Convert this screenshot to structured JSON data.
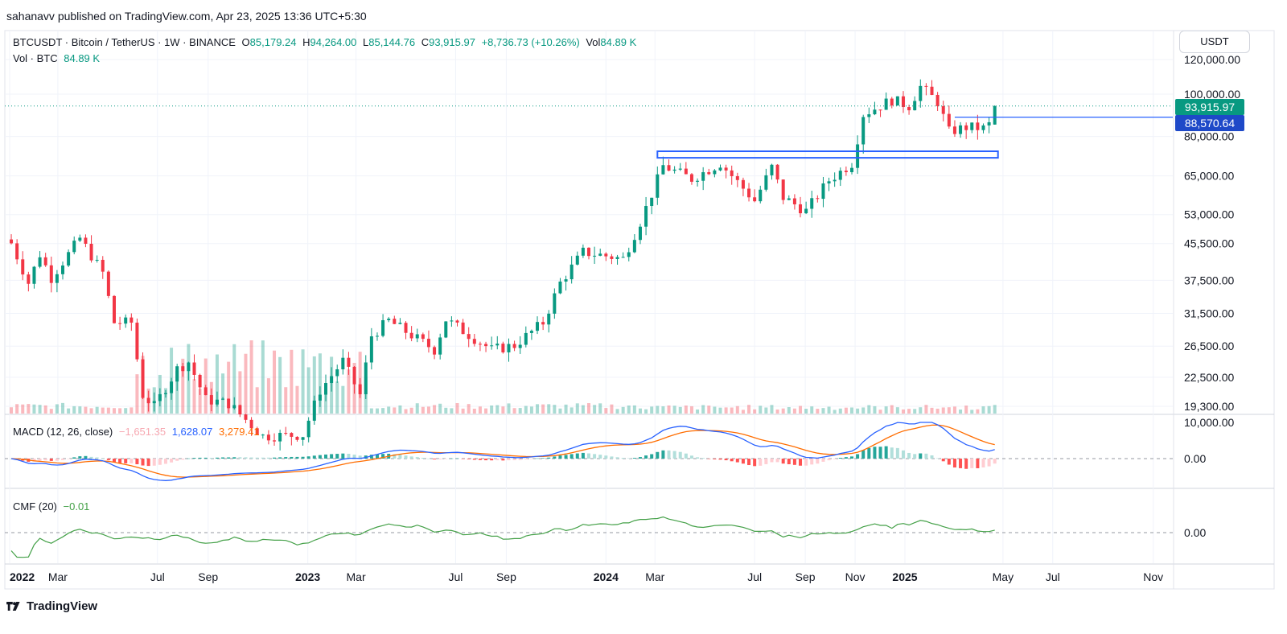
{
  "header": {
    "published": "sahanavv published on TradingView.com, Apr 23, 2025 13:36 UTC+5:30"
  },
  "legend": {
    "symbol": "BTCUSDT · Bitcoin / TetherUS · 1W · BINANCE",
    "o_label": "O",
    "o_value": "85,179.24",
    "h_label": "H",
    "h_value": "94,264.00",
    "l_label": "L",
    "l_value": "85,144.76",
    "c_label": "C",
    "c_value": "93,915.97",
    "change": "+8,736.73 (+10.26%)",
    "vol_label": "Vol",
    "vol_value": "84.89 K",
    "vol_line_label": "Vol · BTC",
    "vol_line_value": "84.89 K"
  },
  "currency_button": "USDT",
  "price_badges": {
    "last": "93,915.97",
    "level": "88,570.64"
  },
  "indicators": {
    "macd_label": "MACD (12, 26, close)",
    "macd_hist": "−1,651.35",
    "macd_line": "1,628.07",
    "macd_signal": "3,279.41",
    "cmf_label": "CMF (20)",
    "cmf_value": "−0.01"
  },
  "footer": {
    "brand": "TradingView"
  },
  "colors": {
    "up": "#089981",
    "down": "#f23645",
    "macd": "#2962ff",
    "signal": "#ff6d00",
    "cmf": "#43a047",
    "level": "#2962ff"
  },
  "chart_data": [
    {
      "type": "candlestick",
      "title": "BTCUSDT · Bitcoin / TetherUS · 1W · BINANCE",
      "y_scale": "log",
      "y_ticks": [
        "120,000.00",
        "100,000.00",
        "80,000.00",
        "65,000.00",
        "53,000.00",
        "45,500.00",
        "37,500.00",
        "31,500.00",
        "26,500.00",
        "22,500.00",
        "19,300.00"
      ],
      "y_tick_values": [
        120000,
        100000,
        80000,
        65000,
        53000,
        45500,
        37500,
        31500,
        26500,
        22500,
        19300
      ],
      "x_ticks": [
        "2022",
        "Mar",
        "Jul",
        "Sep",
        "2023",
        "Mar",
        "Jul",
        "Sep",
        "2024",
        "Mar",
        "Jul",
        "Sep",
        "Nov",
        "2025",
        "May",
        "Jul",
        "Nov"
      ],
      "x_tick_dates": [
        "2022-01-01",
        "2022-03-01",
        "2022-07-01",
        "2022-09-01",
        "2023-01-01",
        "2023-03-01",
        "2023-07-01",
        "2023-09-01",
        "2024-01-01",
        "2024-03-01",
        "2024-07-01",
        "2024-09-01",
        "2024-11-01",
        "2025-01-01",
        "2025-05-01",
        "2025-07-01",
        "2025-11-01"
      ],
      "anchors": [
        {
          "date": "2022-01-01",
          "close": 46500
        },
        {
          "date": "2022-01-24",
          "close": 37000
        },
        {
          "date": "2022-02-07",
          "close": 43000
        },
        {
          "date": "2022-02-21",
          "close": 38000
        },
        {
          "date": "2022-03-28",
          "close": 46800
        },
        {
          "date": "2022-04-25",
          "close": 39000
        },
        {
          "date": "2022-05-09",
          "close": 30000
        },
        {
          "date": "2022-05-30",
          "close": 30000
        },
        {
          "date": "2022-06-13",
          "close": 20500
        },
        {
          "date": "2022-06-27",
          "close": 19300
        },
        {
          "date": "2022-07-25",
          "close": 23500
        },
        {
          "date": "2022-08-08",
          "close": 24400
        },
        {
          "date": "2022-08-29",
          "close": 20000
        },
        {
          "date": "2022-09-26",
          "close": 19600
        },
        {
          "date": "2022-11-07",
          "close": 16500
        },
        {
          "date": "2022-12-26",
          "close": 16600
        },
        {
          "date": "2023-01-16",
          "close": 21000
        },
        {
          "date": "2023-02-13",
          "close": 24500
        },
        {
          "date": "2023-03-06",
          "close": 20500
        },
        {
          "date": "2023-03-20",
          "close": 28000
        },
        {
          "date": "2023-04-10",
          "close": 30300
        },
        {
          "date": "2023-06-05",
          "close": 26000
        },
        {
          "date": "2023-06-19",
          "close": 30500
        },
        {
          "date": "2023-08-14",
          "close": 26000
        },
        {
          "date": "2023-09-11",
          "close": 26600
        },
        {
          "date": "2023-10-16",
          "close": 30000
        },
        {
          "date": "2023-11-06",
          "close": 37000
        },
        {
          "date": "2023-12-04",
          "close": 43500
        },
        {
          "date": "2024-01-22",
          "close": 42000
        },
        {
          "date": "2024-02-12",
          "close": 51000
        },
        {
          "date": "2024-03-11",
          "close": 68500
        },
        {
          "date": "2024-04-15",
          "close": 64000
        },
        {
          "date": "2024-05-20",
          "close": 69500
        },
        {
          "date": "2024-07-01",
          "close": 57000
        },
        {
          "date": "2024-07-22",
          "close": 68000
        },
        {
          "date": "2024-08-05",
          "close": 58000
        },
        {
          "date": "2024-09-02",
          "close": 54000
        },
        {
          "date": "2024-09-30",
          "close": 63500
        },
        {
          "date": "2024-10-28",
          "close": 69500
        },
        {
          "date": "2024-11-11",
          "close": 90000
        },
        {
          "date": "2024-12-16",
          "close": 97000
        },
        {
          "date": "2025-01-06",
          "close": 94000
        },
        {
          "date": "2025-01-20",
          "close": 104000
        },
        {
          "date": "2025-02-10",
          "close": 96000
        },
        {
          "date": "2025-02-24",
          "close": 82000
        },
        {
          "date": "2025-03-17",
          "close": 84000
        },
        {
          "date": "2025-04-07",
          "close": 83500
        },
        {
          "date": "2025-04-14",
          "close": 85179
        },
        {
          "date": "2025-04-21",
          "close": 93916
        }
      ],
      "last_candle": {
        "date": "2025-04-21",
        "open": 85179.24,
        "high": 94264.0,
        "low": 85144.76,
        "close": 93915.97,
        "volume_k_btc": 84.89
      },
      "annotations": [
        {
          "type": "horizontal_line",
          "value": 88570.64,
          "from": "2025-03-03"
        },
        {
          "type": "zone",
          "from": "2024-03-04",
          "to": "2025-04-21",
          "low": 71500,
          "high": 74000
        }
      ]
    },
    {
      "type": "line",
      "title": "MACD (12, 26, close)",
      "series": [
        {
          "name": "MACD",
          "value": 1628.07
        },
        {
          "name": "Signal",
          "value": 3279.41
        },
        {
          "name": "Histogram",
          "value": -1651.35
        }
      ],
      "y_ticks": [
        "10,000.00",
        "0.00"
      ]
    },
    {
      "type": "line",
      "title": "CMF (20)",
      "series": [
        {
          "name": "CMF",
          "value": -0.01
        }
      ],
      "y_ticks": [
        "0.00"
      ]
    }
  ]
}
